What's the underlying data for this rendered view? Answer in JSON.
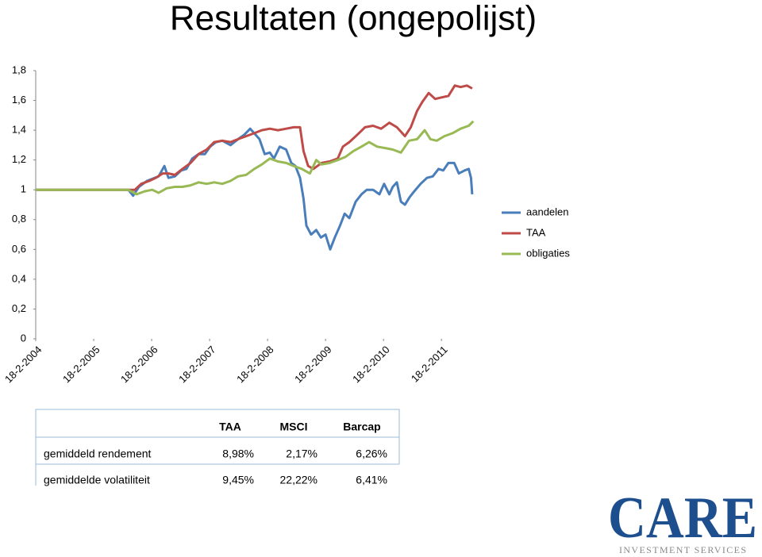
{
  "chart_data": {
    "type": "line",
    "title": "Resultaten (ongepolijst)",
    "xlim": [
      2004.13,
      2011.73
    ],
    "xticks": [
      {
        "value": 2004.13,
        "label": "18-2-2004"
      },
      {
        "value": 2005.13,
        "label": "18-2-2005"
      },
      {
        "value": 2006.13,
        "label": "18-2-2006"
      },
      {
        "value": 2007.13,
        "label": "18-2-2007"
      },
      {
        "value": 2008.13,
        "label": "18-2-2008"
      },
      {
        "value": 2009.13,
        "label": "18-2-2009"
      },
      {
        "value": 2010.13,
        "label": "18-2-2010"
      },
      {
        "value": 2011.13,
        "label": "18-2-2011"
      }
    ],
    "ylim": [
      0,
      1.8
    ],
    "yticks": [
      0,
      {
        "value": 0.2,
        "label": "0,2"
      },
      {
        "value": 0.4,
        "label": "0,4"
      },
      {
        "value": 0.6,
        "label": "0,6"
      },
      {
        "value": 0.8,
        "label": "0,8"
      },
      1,
      {
        "value": 1.2,
        "label": "1,2"
      },
      {
        "value": 1.4,
        "label": "1,4"
      },
      {
        "value": 1.6,
        "label": "1,6"
      },
      {
        "value": 1.8,
        "label": "1,8"
      }
    ],
    "grid": false,
    "legend": "right",
    "series": [
      {
        "name": "aandelen",
        "color": "#4a7ebb",
        "x": [
          2004.13,
          2005.73,
          2005.81,
          2005.91,
          2006.05,
          2006.25,
          2006.35,
          2006.42,
          2006.53,
          2006.64,
          2006.73,
          2006.83,
          2006.94,
          2007.05,
          2007.14,
          2007.24,
          2007.35,
          2007.49,
          2007.62,
          2007.73,
          2007.83,
          2007.9,
          2007.99,
          2008.08,
          2008.17,
          2008.24,
          2008.34,
          2008.45,
          2008.54,
          2008.61,
          2008.69,
          2008.75,
          2008.8,
          2008.88,
          2008.97,
          2009.05,
          2009.13,
          2009.21,
          2009.29,
          2009.38,
          2009.46,
          2009.54,
          2009.65,
          2009.75,
          2009.84,
          2009.95,
          2010.06,
          2010.14,
          2010.23,
          2010.29,
          2010.36,
          2010.43,
          2010.5,
          2010.58,
          2010.66,
          2010.77,
          2010.88,
          2010.98,
          2011.08,
          2011.16,
          2011.25,
          2011.35,
          2011.43,
          2011.53,
          2011.6,
          2011.64,
          2011.66
        ],
        "values": [
          1.0,
          1.0,
          0.96,
          1.02,
          1.06,
          1.09,
          1.16,
          1.08,
          1.09,
          1.13,
          1.14,
          1.21,
          1.24,
          1.24,
          1.29,
          1.32,
          1.33,
          1.3,
          1.34,
          1.37,
          1.41,
          1.38,
          1.34,
          1.24,
          1.25,
          1.21,
          1.29,
          1.27,
          1.18,
          1.16,
          1.08,
          0.94,
          0.76,
          0.7,
          0.73,
          0.68,
          0.7,
          0.6,
          0.68,
          0.76,
          0.84,
          0.81,
          0.92,
          0.97,
          1.0,
          1.0,
          0.97,
          1.04,
          0.97,
          1.02,
          1.05,
          0.92,
          0.9,
          0.95,
          0.99,
          1.04,
          1.08,
          1.09,
          1.14,
          1.13,
          1.18,
          1.18,
          1.11,
          1.13,
          1.14,
          1.08,
          0.97
        ]
      },
      {
        "name": "TAA",
        "color": "#be4b48",
        "x": [
          2004.13,
          2005.73,
          2005.84,
          2005.95,
          2006.09,
          2006.2,
          2006.32,
          2006.42,
          2006.53,
          2006.66,
          2006.8,
          2006.94,
          2007.08,
          2007.21,
          2007.35,
          2007.49,
          2007.62,
          2007.76,
          2007.9,
          2008.03,
          2008.17,
          2008.31,
          2008.45,
          2008.58,
          2008.69,
          2008.75,
          2008.83,
          2008.92,
          2009.06,
          2009.2,
          2009.34,
          2009.43,
          2009.54,
          2009.68,
          2009.81,
          2009.95,
          2010.09,
          2010.23,
          2010.36,
          2010.5,
          2010.6,
          2010.71,
          2010.8,
          2010.91,
          2011.02,
          2011.13,
          2011.25,
          2011.36,
          2011.46,
          2011.57,
          2011.66
        ],
        "values": [
          1.0,
          1.0,
          1.0,
          1.04,
          1.06,
          1.08,
          1.11,
          1.11,
          1.1,
          1.14,
          1.18,
          1.24,
          1.27,
          1.32,
          1.33,
          1.32,
          1.34,
          1.36,
          1.38,
          1.4,
          1.41,
          1.4,
          1.41,
          1.42,
          1.42,
          1.26,
          1.16,
          1.14,
          1.18,
          1.19,
          1.21,
          1.29,
          1.32,
          1.37,
          1.42,
          1.43,
          1.41,
          1.45,
          1.42,
          1.36,
          1.42,
          1.53,
          1.59,
          1.65,
          1.61,
          1.62,
          1.63,
          1.7,
          1.69,
          1.7,
          1.68
        ]
      },
      {
        "name": "obligaties",
        "color": "#98b954",
        "x": [
          2004.13,
          2005.73,
          2005.87,
          2006.01,
          2006.14,
          2006.25,
          2006.39,
          2006.53,
          2006.66,
          2006.8,
          2006.94,
          2007.08,
          2007.21,
          2007.35,
          2007.49,
          2007.62,
          2007.76,
          2007.9,
          2008.03,
          2008.17,
          2008.31,
          2008.45,
          2008.58,
          2008.72,
          2008.86,
          2008.97,
          2009.06,
          2009.2,
          2009.34,
          2009.47,
          2009.61,
          2009.75,
          2009.88,
          2010.02,
          2010.16,
          2010.29,
          2010.43,
          2010.57,
          2010.71,
          2010.84,
          2010.94,
          2011.05,
          2011.18,
          2011.32,
          2011.46,
          2011.6,
          2011.68
        ],
        "values": [
          1.0,
          1.0,
          0.97,
          0.99,
          1.0,
          0.98,
          1.01,
          1.02,
          1.02,
          1.03,
          1.05,
          1.04,
          1.05,
          1.04,
          1.06,
          1.09,
          1.1,
          1.14,
          1.17,
          1.21,
          1.19,
          1.18,
          1.16,
          1.14,
          1.11,
          1.2,
          1.17,
          1.18,
          1.2,
          1.22,
          1.26,
          1.29,
          1.32,
          1.29,
          1.28,
          1.27,
          1.25,
          1.33,
          1.34,
          1.4,
          1.34,
          1.33,
          1.36,
          1.38,
          1.41,
          1.43,
          1.46
        ]
      }
    ]
  },
  "table": {
    "header": [
      "TAA",
      "MSCI",
      "Barcap"
    ],
    "rows": [
      [
        "gemiddeld rendement",
        "8,98%",
        "2,17%",
        "6,26%"
      ],
      [
        "gemiddelde volatiliteit",
        "9,45%",
        "22,22%",
        "6,41%"
      ]
    ]
  },
  "logo": {
    "name": "CARE",
    "tagline": "INVESTMENT SERVICES"
  }
}
